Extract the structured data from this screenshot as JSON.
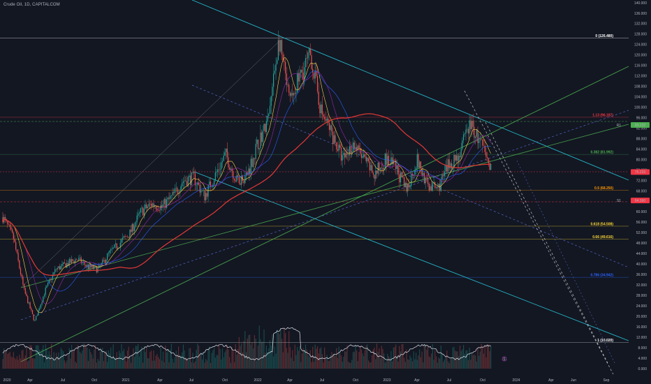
{
  "header": {
    "symbol_text": "Crude Oil, 1D, CAPITALCOM"
  },
  "chart_data": {
    "type": "candlestick",
    "title": "Crude Oil, 1D, CAPITALCOM",
    "ylim": [
      0,
      140
    ],
    "y_ticks": [
      "140.000",
      "136.000",
      "132.000",
      "128.000",
      "124.000",
      "120.000",
      "116.000",
      "112.000",
      "108.000",
      "104.000",
      "100.000",
      "96.000",
      "92.000",
      "88.000",
      "84.000",
      "80.000",
      "76.000",
      "72.000",
      "68.000",
      "64.000",
      "60.000",
      "56.000",
      "52.000",
      "48.000",
      "44.000",
      "40.000",
      "36.000",
      "32.000",
      "28.000",
      "24.000",
      "20.000",
      "16.000",
      "12.000",
      "8.000",
      "4.000",
      "0.000"
    ],
    "x_ticks": [
      "2020",
      "Apr",
      "Jul",
      "Oct",
      "2021",
      "Apr",
      "Jul",
      "Oct",
      "2022",
      "Apr",
      "Jul",
      "Oct",
      "2023",
      "Apr",
      "Jul",
      "Oct",
      "2024",
      "Apr",
      "Jun",
      "Sep"
    ],
    "price_path": [
      [
        "2020-01",
        58
      ],
      [
        "2020-02",
        50
      ],
      [
        "2020-03",
        30
      ],
      [
        "2020-04",
        18
      ],
      [
        "2020-05",
        30
      ],
      [
        "2020-06",
        38
      ],
      [
        "2020-07",
        40
      ],
      [
        "2020-08",
        42
      ],
      [
        "2020-09",
        39
      ],
      [
        "2020-10",
        38
      ],
      [
        "2020-11",
        44
      ],
      [
        "2020-12",
        48
      ],
      [
        "2021-01",
        52
      ],
      [
        "2021-02",
        60
      ],
      [
        "2021-03",
        63
      ],
      [
        "2021-04",
        62
      ],
      [
        "2021-05",
        66
      ],
      [
        "2021-06",
        72
      ],
      [
        "2021-07",
        73
      ],
      [
        "2021-08",
        66
      ],
      [
        "2021-09",
        74
      ],
      [
        "2021-10",
        82
      ],
      [
        "2021-11",
        72
      ],
      [
        "2021-12",
        74
      ],
      [
        "2022-01",
        86
      ],
      [
        "2022-02",
        95
      ],
      [
        "2022-03",
        126
      ],
      [
        "2022-04",
        102
      ],
      [
        "2022-05",
        112
      ],
      [
        "2022-06",
        120
      ],
      [
        "2022-07",
        98
      ],
      [
        "2022-08",
        90
      ],
      [
        "2022-09",
        80
      ],
      [
        "2022-10",
        86
      ],
      [
        "2022-11",
        80
      ],
      [
        "2022-12",
        74
      ],
      [
        "2023-01",
        80
      ],
      [
        "2023-02",
        77
      ],
      [
        "2023-03",
        68
      ],
      [
        "2023-04",
        80
      ],
      [
        "2023-05",
        70
      ],
      [
        "2023-06",
        69
      ],
      [
        "2023-07",
        78
      ],
      [
        "2023-08",
        82
      ],
      [
        "2023-09",
        94
      ],
      [
        "2023-10",
        86
      ],
      [
        "2023-11",
        76
      ]
    ],
    "fib_levels": [
      {
        "label": "0 (126.480)",
        "value": 126.48,
        "color": "#ffffff"
      },
      {
        "label": "1.13 (96.187)",
        "value": 96.19,
        "color": "#f23645"
      },
      {
        "label": "0.382 (81.992)",
        "value": 81.99,
        "color": "#4caf50"
      },
      {
        "label": "0.5 (68.250)",
        "value": 68.25,
        "color": "#ff9800"
      },
      {
        "label": "0.618 (54.508)",
        "value": 54.51,
        "color": "#fdd835"
      },
      {
        "label": "0.66 (49.616)",
        "value": 49.62,
        "color": "#fdd835"
      },
      {
        "label": "0.786 (34.942)",
        "value": 34.94,
        "color": "#2962ff"
      },
      {
        "label": "1 (10.020)",
        "value": 10.02,
        "color": "#ffffff"
      }
    ],
    "price_tags": [
      {
        "label": "R1",
        "value": "93.232",
        "color": "#4caf50"
      },
      {
        "label": "",
        "value": "75.233",
        "color": "#f23645"
      },
      {
        "label": "S1",
        "value": "64.360",
        "color": "#f23645"
      }
    ],
    "indicator_mark": "6",
    "grid": false,
    "legend": "none"
  }
}
